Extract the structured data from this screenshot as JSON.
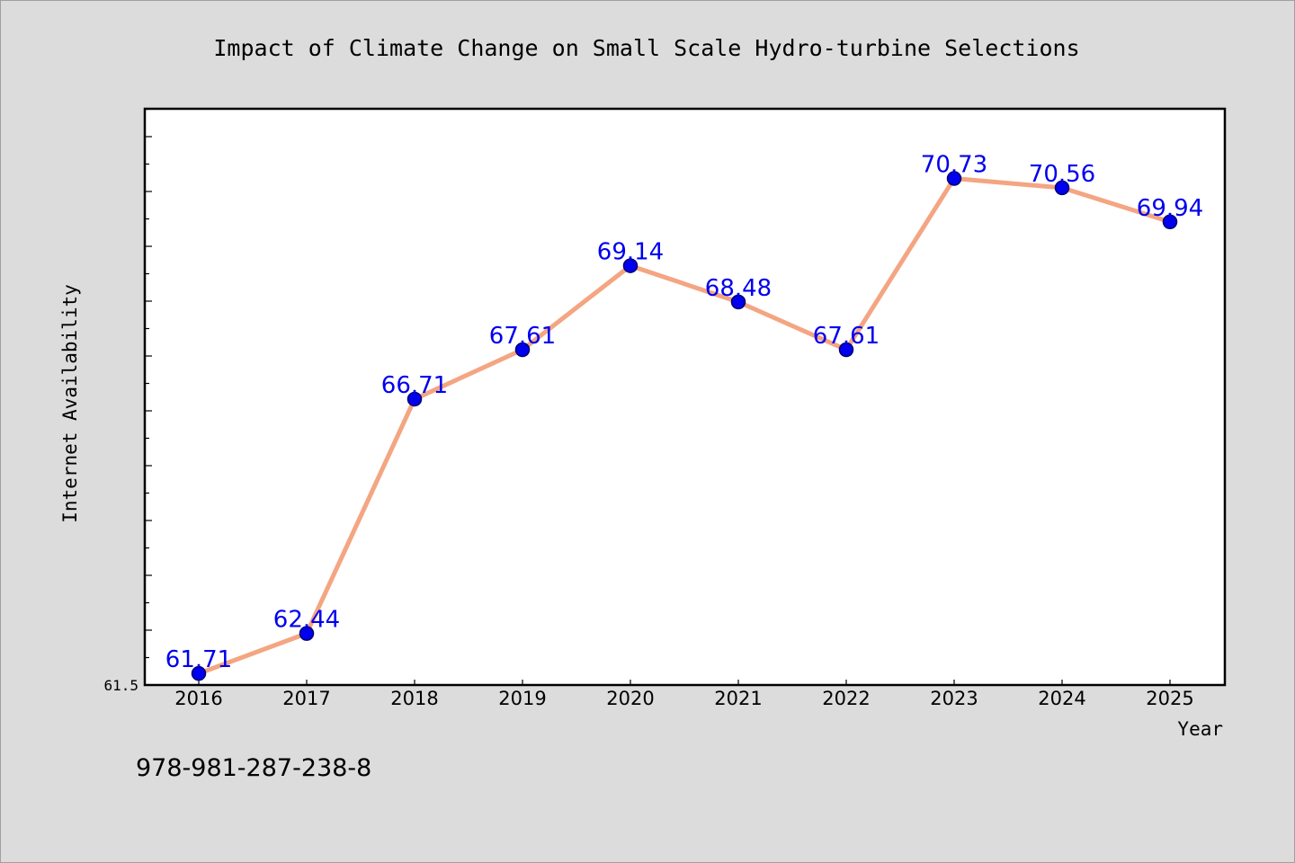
{
  "chart_data": {
    "type": "line",
    "title": "Impact of Climate Change on Small Scale Hydro-turbine Selections",
    "xlabel": "Year",
    "ylabel": "Internet Availability",
    "categories": [
      "2016",
      "2017",
      "2018",
      "2019",
      "2020",
      "2021",
      "2022",
      "2023",
      "2024",
      "2025"
    ],
    "series": [
      {
        "values": [
          61.71,
          62.44,
          66.71,
          67.61,
          69.14,
          68.48,
          67.61,
          70.73,
          70.56,
          69.94
        ],
        "data_labels": [
          "61.71",
          "62.44",
          "66.71",
          "67.61",
          "69.14",
          "68.48",
          "67.61",
          "70.73",
          "70.56",
          "69.94"
        ]
      }
    ],
    "y_tick_label": "61.5",
    "ylim": [
      61.5,
      72.0
    ],
    "grid": false,
    "legend": "none",
    "colors": {
      "line": "#f4a582",
      "marker": "#0000ee",
      "data_label": "#0000ee",
      "plot_background": "#ffffff",
      "figure_background": "#dcdcdc"
    }
  },
  "footer_text": "978-981-287-238-8"
}
